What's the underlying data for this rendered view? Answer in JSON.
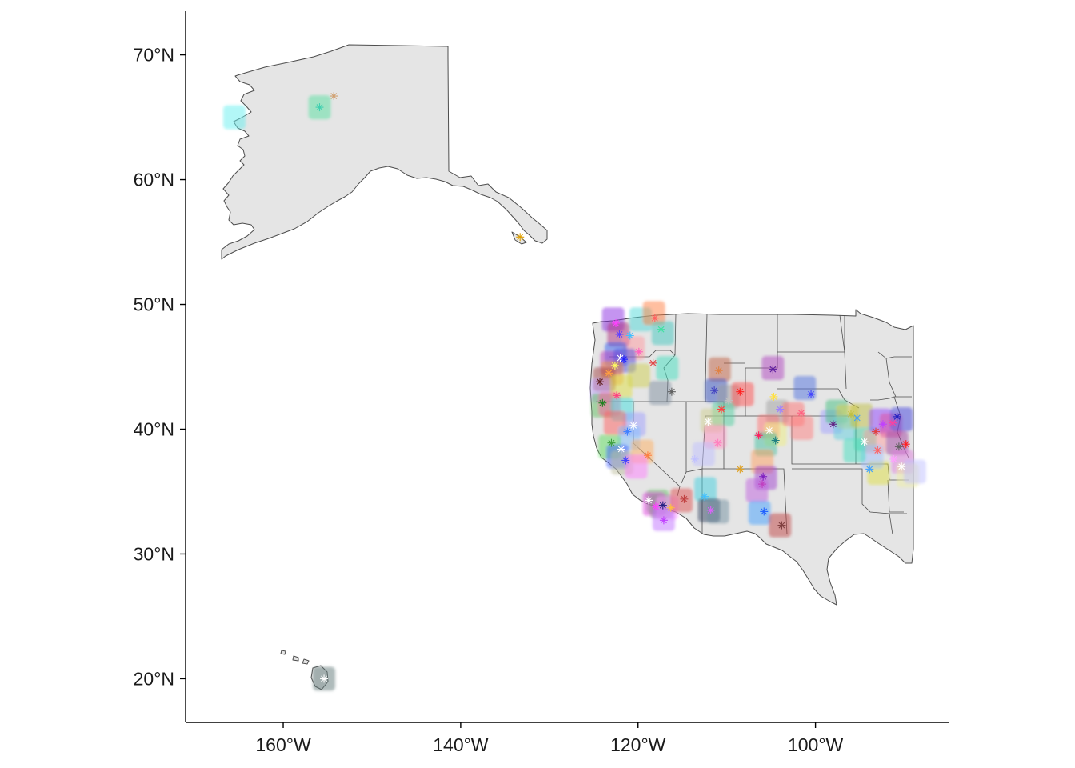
{
  "chart_data": {
    "type": "map",
    "title": "",
    "xlabel": "",
    "ylabel": "",
    "x_ticks": [
      {
        "value": -160,
        "label": "160°W"
      },
      {
        "value": -140,
        "label": "140°W"
      },
      {
        "value": -120,
        "label": "120°W"
      },
      {
        "value": -100,
        "label": "100°W"
      }
    ],
    "y_ticks": [
      {
        "value": 20,
        "label": "20°N"
      },
      {
        "value": 30,
        "label": "30°N"
      },
      {
        "value": 40,
        "label": "40°N"
      },
      {
        "value": 50,
        "label": "50°N"
      },
      {
        "value": 60,
        "label": "60°N"
      },
      {
        "value": 70,
        "label": "70°N"
      }
    ],
    "xlim": [
      -171,
      -85
    ],
    "ylim": [
      16.5,
      73.5
    ],
    "land_color": "#e5e5e5",
    "border_color": "#4d4d4d",
    "grid": false,
    "legend": "none",
    "regions": [
      "Alaska",
      "Hawaii",
      "Western United States"
    ],
    "tiles": [
      [
        -165.5,
        65.0,
        "#66f0f0"
      ],
      [
        -155.9,
        65.8,
        "#57e0a0"
      ],
      [
        -155.4,
        20.0,
        "#607878"
      ],
      [
        -122.8,
        48.8,
        "#8a2be2"
      ],
      [
        -122.2,
        47.6,
        "#b03080"
      ],
      [
        -119.7,
        48.8,
        "#4dd9d9"
      ],
      [
        -118.2,
        49.3,
        "#ff8040"
      ],
      [
        -117.2,
        47.7,
        "#40c8c0"
      ],
      [
        -120.5,
        46.5,
        "#ff9aa0"
      ],
      [
        -122.5,
        46.0,
        "#3060f0"
      ],
      [
        -123.0,
        45.3,
        "#c040c0"
      ],
      [
        -121.5,
        45.5,
        "#5050e0"
      ],
      [
        -122.9,
        44.5,
        "#f0a040"
      ],
      [
        -123.8,
        44.0,
        "#a04040"
      ],
      [
        -124.1,
        43.1,
        "#c0a0ff"
      ],
      [
        -124.0,
        41.9,
        "#60c060"
      ],
      [
        -121.9,
        43.4,
        "#e0e040"
      ],
      [
        -123.2,
        42.0,
        "#ff60a0"
      ],
      [
        -121.8,
        41.6,
        "#40e0e0"
      ],
      [
        -119.9,
        44.3,
        "#d0d050"
      ],
      [
        -117.5,
        42.9,
        "#8090a0"
      ],
      [
        -116.7,
        44.9,
        "#40e0c0"
      ],
      [
        -120.4,
        40.4,
        "#a0a0ff"
      ],
      [
        -122.6,
        40.5,
        "#ff6060"
      ],
      [
        -121.0,
        39.3,
        "#80c0ff"
      ],
      [
        -123.2,
        38.6,
        "#60e060"
      ],
      [
        -122.3,
        37.8,
        "#4060ff"
      ],
      [
        -121.8,
        37.3,
        "#c0c0a0"
      ],
      [
        -119.5,
        38.2,
        "#ffb060"
      ],
      [
        -120.2,
        37.0,
        "#ff80ff"
      ],
      [
        -117.8,
        34.2,
        "#60c060"
      ],
      [
        -118.2,
        34.0,
        "#e040e0"
      ],
      [
        -117.4,
        33.8,
        "#909090"
      ],
      [
        -116.7,
        33.7,
        "#ffa0ff"
      ],
      [
        -117.1,
        32.8,
        "#c070ff"
      ],
      [
        -115.1,
        34.3,
        "#e05050"
      ],
      [
        -112.4,
        35.2,
        "#40d0e0"
      ],
      [
        -112.0,
        33.5,
        "#304060"
      ],
      [
        -111.0,
        33.4,
        "#7090a0"
      ],
      [
        -110.8,
        44.8,
        "#c06040"
      ],
      [
        -111.2,
        43.1,
        "#3050c0"
      ],
      [
        -109.8,
        42.6,
        "#a0a0a0"
      ],
      [
        -108.2,
        42.8,
        "#ff5050"
      ],
      [
        -110.4,
        41.2,
        "#50d0a0"
      ],
      [
        -111.7,
        40.7,
        "#d0d090"
      ],
      [
        -111.3,
        39.4,
        "#ff90c0"
      ],
      [
        -112.6,
        38.0,
        "#c0c0ff"
      ],
      [
        -104.8,
        44.9,
        "#b040c0"
      ],
      [
        -104.3,
        41.4,
        "#a0a0a0"
      ],
      [
        -105.3,
        40.2,
        "#ff7070"
      ],
      [
        -104.5,
        39.6,
        "#f0f080"
      ],
      [
        -105.6,
        38.8,
        "#40c0a0"
      ],
      [
        -106.0,
        37.4,
        "#ffa060"
      ],
      [
        -105.6,
        36.1,
        "#a040d0"
      ],
      [
        -106.6,
        35.1,
        "#c060e0"
      ],
      [
        -106.3,
        33.3,
        "#40a0ff"
      ],
      [
        -104.0,
        32.3,
        "#c04040"
      ],
      [
        -101.2,
        43.3,
        "#5070e0"
      ],
      [
        -102.5,
        41.2,
        "#ff7070"
      ],
      [
        -101.5,
        40.1,
        "#ff8080"
      ],
      [
        -98.2,
        40.6,
        "#a0a0ff"
      ],
      [
        -97.6,
        41.4,
        "#40c080"
      ],
      [
        -96.4,
        41.0,
        "#e0d050"
      ],
      [
        -96.7,
        40.1,
        "#60d0e0"
      ],
      [
        -94.8,
        41.1,
        "#c0c040"
      ],
      [
        -94.4,
        39.2,
        "#40d0a0"
      ],
      [
        -93.3,
        39.0,
        "#ffa0a0"
      ],
      [
        -92.7,
        40.7,
        "#9040ff"
      ],
      [
        -91.5,
        40.3,
        "#e050a0"
      ],
      [
        -90.3,
        40.8,
        "#4040e0"
      ],
      [
        -90.8,
        38.9,
        "#a040a0"
      ],
      [
        -90.2,
        37.4,
        "#e080e0"
      ],
      [
        -92.9,
        36.5,
        "#e0e040"
      ],
      [
        -89.6,
        36.3,
        "#f0f0a0"
      ],
      [
        -93.6,
        37.8,
        "#a0c0ff"
      ],
      [
        -88.8,
        36.6,
        "#c0c0ff"
      ],
      [
        -95.6,
        38.3,
        "#40e0c0"
      ]
    ],
    "stars": [
      [
        -155.9,
        65.8,
        "#40d0b0"
      ],
      [
        -154.3,
        66.7,
        "#d0a070"
      ],
      [
        -133.3,
        55.4,
        "#e0a000"
      ],
      [
        -155.4,
        20.0,
        "#ffffff"
      ],
      [
        -122.5,
        48.5,
        "#ff40ff"
      ],
      [
        -122.1,
        47.6,
        "#6040ff"
      ],
      [
        -120.9,
        47.5,
        "#40c0ff"
      ],
      [
        -118.1,
        48.9,
        "#ff6060"
      ],
      [
        -117.4,
        48.0,
        "#40e0a0"
      ],
      [
        -119.9,
        46.2,
        "#ff60c0"
      ],
      [
        -122.0,
        45.7,
        "#ffffff"
      ],
      [
        -121.6,
        45.6,
        "#2020ff"
      ],
      [
        -122.6,
        45.1,
        "#ffff60"
      ],
      [
        -123.3,
        44.5,
        "#ffa040"
      ],
      [
        -118.3,
        45.3,
        "#e04040"
      ],
      [
        -124.3,
        43.8,
        "#602020"
      ],
      [
        -124.0,
        42.1,
        "#208020"
      ],
      [
        -122.4,
        42.7,
        "#ff4080"
      ],
      [
        -116.2,
        43.0,
        "#606060"
      ],
      [
        -120.5,
        40.3,
        "#ffffff"
      ],
      [
        -121.2,
        39.8,
        "#4080ff"
      ],
      [
        -123.0,
        38.9,
        "#40a040"
      ],
      [
        -121.9,
        38.4,
        "#ffffff"
      ],
      [
        -121.4,
        37.5,
        "#4040ff"
      ],
      [
        -118.9,
        37.9,
        "#ff8040"
      ],
      [
        -118.8,
        34.3,
        "#ffffff"
      ],
      [
        -118.0,
        33.8,
        "#ff40ff"
      ],
      [
        -117.2,
        33.9,
        "#202080"
      ],
      [
        -116.3,
        33.7,
        "#ffc040"
      ],
      [
        -117.1,
        32.7,
        "#c040ff"
      ],
      [
        -114.8,
        34.4,
        "#c04040"
      ],
      [
        -112.5,
        34.6,
        "#40c0ff"
      ],
      [
        -111.8,
        33.5,
        "#e060ff"
      ],
      [
        -110.9,
        44.7,
        "#e08040"
      ],
      [
        -111.4,
        43.1,
        "#4040c0"
      ],
      [
        -110.6,
        41.6,
        "#ff4040"
      ],
      [
        -109.8,
        42.3,
        "#c0c0c0"
      ],
      [
        -108.5,
        43.0,
        "#ff2020"
      ],
      [
        -112.1,
        40.6,
        "#ffffff"
      ],
      [
        -111.0,
        38.9,
        "#ff80c0"
      ],
      [
        -113.6,
        37.6,
        "#c0c0ff"
      ],
      [
        -108.5,
        36.8,
        "#e0a020"
      ],
      [
        -104.8,
        44.8,
        "#6020a0"
      ],
      [
        -104.7,
        42.6,
        "#ffe040"
      ],
      [
        -104.0,
        41.6,
        "#a080ff"
      ],
      [
        -106.4,
        39.5,
        "#ff2060"
      ],
      [
        -105.2,
        39.9,
        "#ffffff"
      ],
      [
        -104.5,
        39.1,
        "#208080"
      ],
      [
        -105.9,
        36.2,
        "#8020c0"
      ],
      [
        -106.0,
        35.6,
        "#c040c0"
      ],
      [
        -105.8,
        33.4,
        "#2060ff"
      ],
      [
        -103.8,
        32.3,
        "#804040"
      ],
      [
        -100.5,
        42.8,
        "#4040ff"
      ],
      [
        -101.6,
        41.3,
        "#ff6080"
      ],
      [
        -98.0,
        40.4,
        "#602080"
      ],
      [
        -96.0,
        41.2,
        "#c0c040"
      ],
      [
        -95.3,
        40.9,
        "#40a0ff"
      ],
      [
        -94.5,
        39.0,
        "#ffffff"
      ],
      [
        -93.2,
        39.8,
        "#e04040"
      ],
      [
        -92.4,
        40.4,
        "#c040ff"
      ],
      [
        -91.3,
        40.5,
        "#ff40a0"
      ],
      [
        -90.8,
        41.0,
        "#2020c0"
      ],
      [
        -90.6,
        38.6,
        "#606060"
      ],
      [
        -90.3,
        37.0,
        "#ffffff"
      ],
      [
        -93.0,
        38.3,
        "#ff6060"
      ],
      [
        -93.9,
        36.8,
        "#40a0ff"
      ],
      [
        -89.8,
        38.8,
        "#ff2020"
      ],
      [
        -91.2,
        37.6,
        "#ffa0ff"
      ]
    ]
  }
}
